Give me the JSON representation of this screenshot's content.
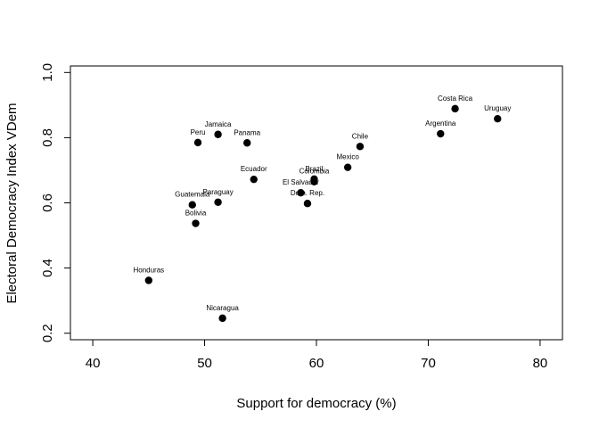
{
  "chart_data": {
    "type": "scatter",
    "title": "",
    "xlabel": "Support for democracy (%)",
    "ylabel": "Electoral Democracy Index VDem",
    "xlim": [
      38,
      82
    ],
    "ylim": [
      0.18,
      1.02
    ],
    "xticks": [
      40,
      50,
      60,
      70,
      80
    ],
    "yticks": [
      0.2,
      0.4,
      0.6,
      0.8,
      1.0
    ],
    "xtick_labels": [
      "40",
      "50",
      "60",
      "70",
      "80"
    ],
    "ytick_labels": [
      "0.2",
      "0.4",
      "0.6",
      "0.8",
      "1.0"
    ],
    "grid": false,
    "legend": "none",
    "marker_color": "#000000",
    "points": [
      {
        "label": "Uruguay",
        "x": 76.2,
        "y": 0.858
      },
      {
        "label": "Costa Rica",
        "x": 72.4,
        "y": 0.889
      },
      {
        "label": "Argentina",
        "x": 71.1,
        "y": 0.812
      },
      {
        "label": "Chile",
        "x": 63.9,
        "y": 0.773
      },
      {
        "label": "Mexico",
        "x": 62.8,
        "y": 0.709
      },
      {
        "label": "Brazil",
        "x": 59.8,
        "y": 0.673
      },
      {
        "label": "Colombia",
        "x": 59.8,
        "y": 0.665
      },
      {
        "label": "El Salvador",
        "x": 58.6,
        "y": 0.631
      },
      {
        "label": "Dom. Rep.",
        "x": 59.2,
        "y": 0.598
      },
      {
        "label": "Ecuador",
        "x": 54.4,
        "y": 0.672
      },
      {
        "label": "Panama",
        "x": 53.8,
        "y": 0.784
      },
      {
        "label": "Jamaica",
        "x": 51.2,
        "y": 0.81
      },
      {
        "label": "Peru",
        "x": 49.4,
        "y": 0.785
      },
      {
        "label": "Paraguay",
        "x": 51.2,
        "y": 0.602
      },
      {
        "label": "Guatemala",
        "x": 48.9,
        "y": 0.594
      },
      {
        "label": "Bolivia",
        "x": 49.2,
        "y": 0.537
      },
      {
        "label": "Honduras",
        "x": 45.0,
        "y": 0.362
      },
      {
        "label": "Nicaragua",
        "x": 51.6,
        "y": 0.246
      }
    ]
  }
}
